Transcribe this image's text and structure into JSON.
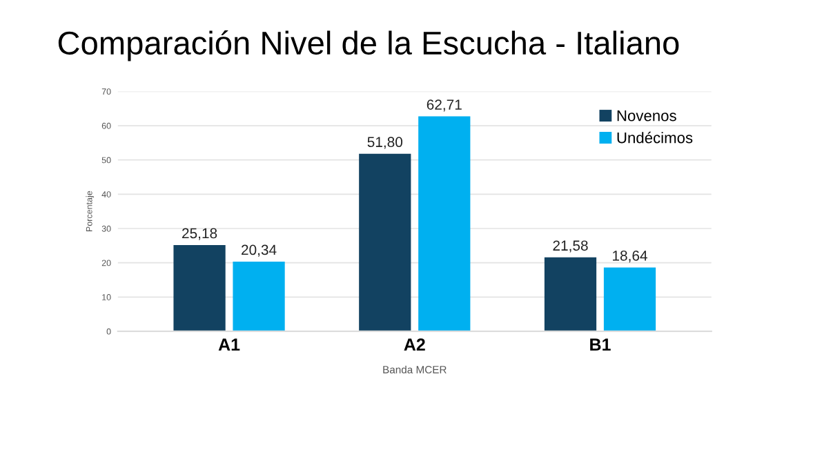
{
  "chart_data": {
    "type": "bar",
    "title": "Comparación Nivel de la Escucha - Italiano",
    "xlabel": "Banda MCER",
    "ylabel": "Porcentaje",
    "categories": [
      "A1",
      "A2",
      "B1"
    ],
    "series": [
      {
        "name": "Novenos",
        "color": "#124261",
        "values": [
          25.18,
          51.8,
          21.58
        ],
        "value_labels": [
          "25,18",
          "51,80",
          "21,58"
        ]
      },
      {
        "name": "Undécimos",
        "color": "#00b0f0",
        "values": [
          20.34,
          62.71,
          18.64
        ],
        "value_labels": [
          "20,34",
          "62,71",
          "18,64"
        ]
      }
    ],
    "ylim": [
      0,
      70
    ],
    "yticks": [
      0,
      10,
      20,
      30,
      40,
      50,
      60,
      70
    ],
    "grid": "y",
    "legend": "top right"
  }
}
